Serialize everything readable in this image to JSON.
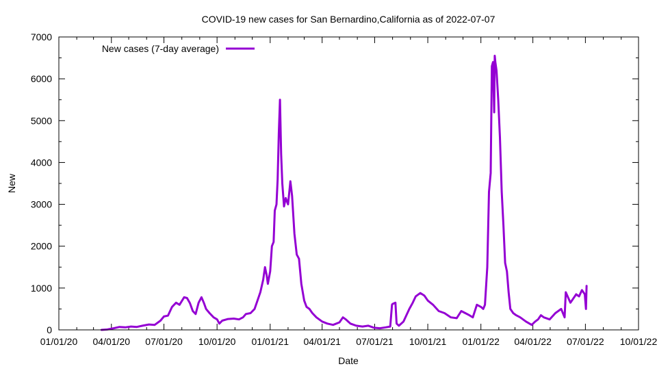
{
  "chart_data": {
    "type": "line",
    "title": "COVID-19 new cases for San Bernardino,California as of 2022-07-07",
    "xlabel": "Date",
    "ylabel": "New",
    "xlim": [
      "2020-01-01",
      "2022-10-01"
    ],
    "ylim": [
      0,
      7000
    ],
    "x_ticks": [
      "01/01/20",
      "04/01/20",
      "07/01/20",
      "10/01/20",
      "01/01/21",
      "04/01/21",
      "07/01/21",
      "10/01/21",
      "01/01/22",
      "04/01/22",
      "07/01/22",
      "10/01/22"
    ],
    "y_ticks": [
      0,
      1000,
      2000,
      3000,
      4000,
      5000,
      6000,
      7000
    ],
    "grid": false,
    "legend_position": "top-left",
    "series": [
      {
        "name": "New cases (7-day average)",
        "color": "#9400d3",
        "points": [
          [
            "2020-03-15",
            0
          ],
          [
            "2020-03-25",
            10
          ],
          [
            "2020-04-05",
            40
          ],
          [
            "2020-04-15",
            70
          ],
          [
            "2020-04-25",
            60
          ],
          [
            "2020-05-05",
            80
          ],
          [
            "2020-05-15",
            70
          ],
          [
            "2020-05-25",
            100
          ],
          [
            "2020-06-05",
            130
          ],
          [
            "2020-06-15",
            120
          ],
          [
            "2020-06-25",
            220
          ],
          [
            "2020-07-01",
            320
          ],
          [
            "2020-07-08",
            340
          ],
          [
            "2020-07-15",
            550
          ],
          [
            "2020-07-22",
            650
          ],
          [
            "2020-07-28",
            600
          ],
          [
            "2020-08-05",
            780
          ],
          [
            "2020-08-10",
            760
          ],
          [
            "2020-08-15",
            640
          ],
          [
            "2020-08-20",
            450
          ],
          [
            "2020-08-25",
            380
          ],
          [
            "2020-08-30",
            650
          ],
          [
            "2020-09-04",
            780
          ],
          [
            "2020-09-08",
            650
          ],
          [
            "2020-09-12",
            500
          ],
          [
            "2020-09-18",
            400
          ],
          [
            "2020-09-25",
            300
          ],
          [
            "2020-10-01",
            250
          ],
          [
            "2020-10-05",
            150
          ],
          [
            "2020-10-10",
            220
          ],
          [
            "2020-10-20",
            260
          ],
          [
            "2020-10-30",
            270
          ],
          [
            "2020-11-08",
            250
          ],
          [
            "2020-11-15",
            300
          ],
          [
            "2020-11-20",
            380
          ],
          [
            "2020-11-28",
            400
          ],
          [
            "2020-12-05",
            500
          ],
          [
            "2020-12-10",
            700
          ],
          [
            "2020-12-15",
            900
          ],
          [
            "2020-12-20",
            1200
          ],
          [
            "2020-12-23",
            1500
          ],
          [
            "2020-12-26",
            1300
          ],
          [
            "2020-12-28",
            1100
          ],
          [
            "2021-01-01",
            1400
          ],
          [
            "2021-01-04",
            2000
          ],
          [
            "2021-01-07",
            2100
          ],
          [
            "2021-01-09",
            2850
          ],
          [
            "2021-01-12",
            3000
          ],
          [
            "2021-01-14",
            3600
          ],
          [
            "2021-01-16",
            4700
          ],
          [
            "2021-01-18",
            5500
          ],
          [
            "2021-01-20",
            4200
          ],
          [
            "2021-01-22",
            3500
          ],
          [
            "2021-01-25",
            2950
          ],
          [
            "2021-01-28",
            3150
          ],
          [
            "2021-02-01",
            3000
          ],
          [
            "2021-02-05",
            3550
          ],
          [
            "2021-02-08",
            3200
          ],
          [
            "2021-02-12",
            2300
          ],
          [
            "2021-02-16",
            1800
          ],
          [
            "2021-02-20",
            1700
          ],
          [
            "2021-02-24",
            1100
          ],
          [
            "2021-03-01",
            700
          ],
          [
            "2021-03-05",
            550
          ],
          [
            "2021-03-10",
            500
          ],
          [
            "2021-03-15",
            400
          ],
          [
            "2021-03-22",
            300
          ],
          [
            "2021-04-01",
            200
          ],
          [
            "2021-04-10",
            150
          ],
          [
            "2021-04-20",
            120
          ],
          [
            "2021-05-01",
            180
          ],
          [
            "2021-05-07",
            300
          ],
          [
            "2021-05-12",
            250
          ],
          [
            "2021-05-20",
            150
          ],
          [
            "2021-05-30",
            100
          ],
          [
            "2021-06-10",
            80
          ],
          [
            "2021-06-20",
            100
          ],
          [
            "2021-06-30",
            50
          ],
          [
            "2021-07-10",
            40
          ],
          [
            "2021-07-20",
            60
          ],
          [
            "2021-07-28",
            80
          ],
          [
            "2021-07-31",
            600
          ],
          [
            "2021-08-01",
            620
          ],
          [
            "2021-08-06",
            650
          ],
          [
            "2021-08-08",
            150
          ],
          [
            "2021-08-12",
            100
          ],
          [
            "2021-08-20",
            200
          ],
          [
            "2021-08-30",
            500
          ],
          [
            "2021-09-05",
            650
          ],
          [
            "2021-09-10",
            800
          ],
          [
            "2021-09-18",
            880
          ],
          [
            "2021-09-25",
            820
          ],
          [
            "2021-10-01",
            700
          ],
          [
            "2021-10-10",
            600
          ],
          [
            "2021-10-20",
            450
          ],
          [
            "2021-10-30",
            400
          ],
          [
            "2021-11-10",
            300
          ],
          [
            "2021-11-20",
            280
          ],
          [
            "2021-11-28",
            450
          ],
          [
            "2021-12-05",
            400
          ],
          [
            "2021-12-12",
            350
          ],
          [
            "2021-12-18",
            300
          ],
          [
            "2021-12-25",
            600
          ],
          [
            "2022-01-01",
            550
          ],
          [
            "2022-01-05",
            500
          ],
          [
            "2022-01-08",
            600
          ],
          [
            "2022-01-12",
            1500
          ],
          [
            "2022-01-15",
            3300
          ],
          [
            "2022-01-18",
            3750
          ],
          [
            "2022-01-20",
            6300
          ],
          [
            "2022-01-22",
            6400
          ],
          [
            "2022-01-24",
            5200
          ],
          [
            "2022-01-25",
            6550
          ],
          [
            "2022-01-26",
            6400
          ],
          [
            "2022-01-28",
            6200
          ],
          [
            "2022-01-31",
            5500
          ],
          [
            "2022-02-03",
            4600
          ],
          [
            "2022-02-06",
            3300
          ],
          [
            "2022-02-09",
            2500
          ],
          [
            "2022-02-12",
            1600
          ],
          [
            "2022-02-15",
            1400
          ],
          [
            "2022-02-18",
            900
          ],
          [
            "2022-02-21",
            500
          ],
          [
            "2022-02-26",
            400
          ],
          [
            "2022-03-03",
            350
          ],
          [
            "2022-03-10",
            300
          ],
          [
            "2022-03-20",
            200
          ],
          [
            "2022-03-30",
            120
          ],
          [
            "2022-04-05",
            200
          ],
          [
            "2022-04-10",
            250
          ],
          [
            "2022-04-15",
            350
          ],
          [
            "2022-04-20",
            300
          ],
          [
            "2022-04-30",
            250
          ],
          [
            "2022-05-10",
            400
          ],
          [
            "2022-05-20",
            500
          ],
          [
            "2022-05-26",
            300
          ],
          [
            "2022-05-28",
            900
          ],
          [
            "2022-06-05",
            650
          ],
          [
            "2022-06-15",
            850
          ],
          [
            "2022-06-20",
            800
          ],
          [
            "2022-06-25",
            950
          ],
          [
            "2022-06-30",
            850
          ],
          [
            "2022-07-02",
            500
          ],
          [
            "2022-07-03",
            1050
          ]
        ]
      }
    ]
  }
}
